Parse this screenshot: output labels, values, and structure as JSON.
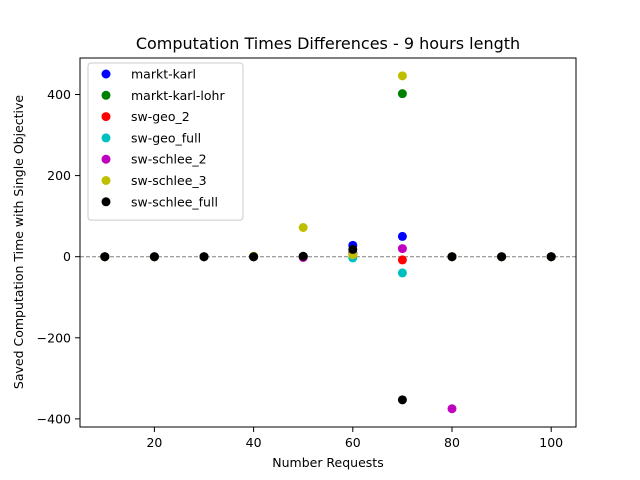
{
  "chart_data": {
    "type": "scatter",
    "title": "Computation Times Differences - 9 hours length",
    "xlabel": "Number Requests",
    "ylabel": "Saved Computation Time with Single Objective",
    "xlim": [
      5,
      105
    ],
    "ylim": [
      -420,
      490
    ],
    "xticks": [
      20,
      40,
      60,
      80,
      100
    ],
    "yticks": [
      -400,
      -200,
      0,
      200,
      400
    ],
    "xtick_labels": [
      "20",
      "40",
      "60",
      "80",
      "100"
    ],
    "ytick_labels": [
      "−400",
      "−200",
      "0",
      "200",
      "400"
    ],
    "reference_line": {
      "y": 0,
      "style": "dashed",
      "color": "#808080"
    },
    "grid": false,
    "legend_position": "top-left",
    "series": [
      {
        "name": "markt-karl",
        "color": "#0000ff",
        "points": [
          [
            10,
            0
          ],
          [
            20,
            0
          ],
          [
            30,
            0
          ],
          [
            40,
            0
          ],
          [
            50,
            0
          ],
          [
            60,
            28
          ],
          [
            70,
            50
          ],
          [
            80,
            0
          ],
          [
            90,
            0
          ],
          [
            100,
            0
          ]
        ]
      },
      {
        "name": "markt-karl-lohr",
        "color": "#008000",
        "points": [
          [
            10,
            0
          ],
          [
            20,
            0
          ],
          [
            30,
            0
          ],
          [
            40,
            0
          ],
          [
            50,
            0
          ],
          [
            60,
            10
          ],
          [
            70,
            402
          ],
          [
            80,
            0
          ],
          [
            90,
            0
          ],
          [
            100,
            0
          ]
        ]
      },
      {
        "name": "sw-geo_2",
        "color": "#ff0000",
        "points": [
          [
            10,
            0
          ],
          [
            20,
            0
          ],
          [
            30,
            0
          ],
          [
            40,
            0
          ],
          [
            50,
            0
          ],
          [
            60,
            5
          ],
          [
            70,
            -8
          ],
          [
            80,
            0
          ],
          [
            90,
            0
          ],
          [
            100,
            0
          ]
        ]
      },
      {
        "name": "sw-geo_full",
        "color": "#00bfbf",
        "points": [
          [
            10,
            0
          ],
          [
            20,
            0
          ],
          [
            30,
            0
          ],
          [
            40,
            0
          ],
          [
            50,
            0
          ],
          [
            60,
            -3
          ],
          [
            70,
            -40
          ],
          [
            80,
            0
          ],
          [
            90,
            0
          ],
          [
            100,
            0
          ]
        ]
      },
      {
        "name": "sw-schlee_2",
        "color": "#bf00bf",
        "points": [
          [
            10,
            0
          ],
          [
            20,
            0
          ],
          [
            30,
            0
          ],
          [
            40,
            0
          ],
          [
            50,
            -2
          ],
          [
            60,
            8
          ],
          [
            70,
            20
          ],
          [
            80,
            -375
          ],
          [
            90,
            0
          ],
          [
            100,
            0
          ]
        ]
      },
      {
        "name": "sw-schlee_3",
        "color": "#bfbf00",
        "points": [
          [
            10,
            0
          ],
          [
            20,
            0
          ],
          [
            30,
            0
          ],
          [
            40,
            1
          ],
          [
            50,
            72
          ],
          [
            60,
            5
          ],
          [
            70,
            446
          ],
          [
            80,
            0
          ],
          [
            90,
            0
          ],
          [
            100,
            0
          ]
        ]
      },
      {
        "name": "sw-schlee_full",
        "color": "#000000",
        "points": [
          [
            10,
            0
          ],
          [
            20,
            0
          ],
          [
            30,
            0
          ],
          [
            40,
            0
          ],
          [
            50,
            1
          ],
          [
            60,
            18
          ],
          [
            70,
            -353
          ],
          [
            80,
            0
          ],
          [
            90,
            0
          ],
          [
            100,
            0
          ]
        ]
      }
    ]
  }
}
